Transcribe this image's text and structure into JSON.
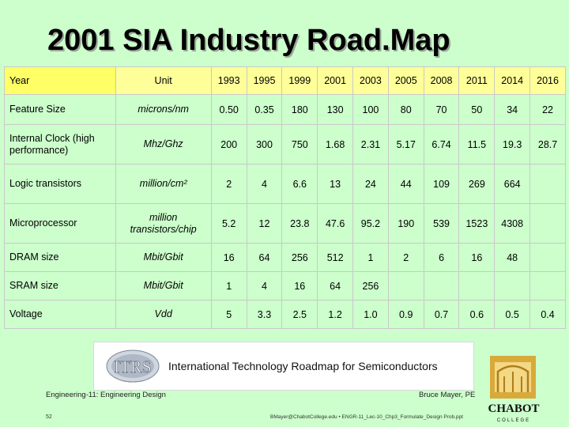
{
  "title": "2001 SIA Industry Road.Map",
  "table": {
    "header": {
      "label": "Year",
      "unit": "Unit",
      "years": [
        "1993",
        "1995",
        "1999",
        "2001",
        "2003",
        "2005",
        "2008",
        "2011",
        "2014",
        "2016"
      ]
    },
    "rows": [
      {
        "label": "Feature Size",
        "unit": "microns/nm",
        "values": [
          "0.50",
          "0.35",
          "180",
          "130",
          "100",
          "80",
          "70",
          "50",
          "34",
          "22"
        ]
      },
      {
        "label": "Internal Clock (high performance)",
        "unit": "Mhz/Ghz",
        "values": [
          "200",
          "300",
          "750",
          "1.68",
          "2.31",
          "5.17",
          "6.74",
          "11.5",
          "19.3",
          "28.7"
        ]
      },
      {
        "label": "Logic transistors",
        "unit": "million/cm²",
        "values": [
          "2",
          "4",
          "6.6",
          "13",
          "24",
          "44",
          "109",
          "269",
          "664",
          ""
        ]
      },
      {
        "label": "Microprocessor",
        "unit": "million transistors/chip",
        "values": [
          "5.2",
          "12",
          "23.8",
          "47.6",
          "95.2",
          "190",
          "539",
          "1523",
          "4308",
          ""
        ]
      },
      {
        "label": "DRAM size",
        "unit": "Mbit/Gbit",
        "values": [
          "16",
          "64",
          "256",
          "512",
          "1",
          "2",
          "6",
          "16",
          "48",
          ""
        ]
      },
      {
        "label": "SRAM size",
        "unit": "Mbit/Gbit",
        "values": [
          "1",
          "4",
          "16",
          "64",
          "256",
          "",
          "",
          "",
          "",
          ""
        ]
      },
      {
        "label": "Voltage",
        "unit": "Vdd",
        "values": [
          "5",
          "3.3",
          "2.5",
          "1.2",
          "1.0",
          "0.9",
          "0.7",
          "0.6",
          "0.5",
          "0.4"
        ]
      }
    ]
  },
  "logo": {
    "acronym": "ITRS",
    "text": "International Technology Roadmap for Semiconductors"
  },
  "footer": {
    "course": "Engineering-11: Engineering Design",
    "page": "52",
    "author": "Bruce Mayer, PE",
    "email_line": "BMayer@ChabotCollege.edu • ENGR-11_Lec-10_Chp3_Formulate_Design Prob.ppt",
    "college": "CHABOT",
    "college_sub": "COLLEGE"
  },
  "colors": {
    "background": "#ccffcc",
    "header_row": "#ffff99",
    "header_corner": "#ffff66"
  }
}
